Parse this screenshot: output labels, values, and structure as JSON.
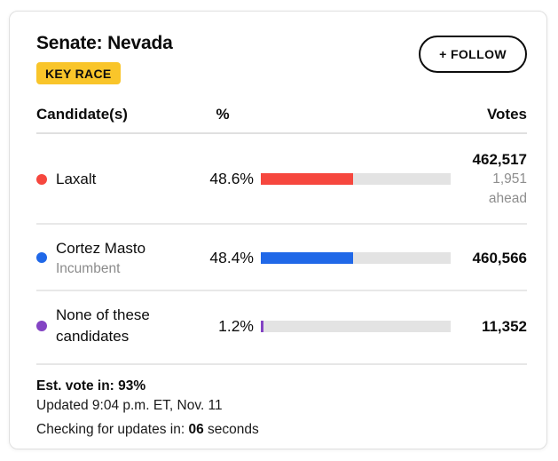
{
  "header": {
    "title": "Senate: Nevada",
    "badge": "KEY RACE",
    "follow_label": "+ FOLLOW"
  },
  "table": {
    "col_candidate": "Candidate(s)",
    "col_percent": "%",
    "col_votes": "Votes"
  },
  "candidates": [
    {
      "name": "Laxalt",
      "percent": "48.6%",
      "percent_value": 48.6,
      "votes": "462,517",
      "margin": "1,951",
      "margin_label": "ahead",
      "color": "#f6473e"
    },
    {
      "name": "Cortez Masto",
      "subtitle": "Incumbent",
      "percent": "48.4%",
      "percent_value": 48.4,
      "votes": "460,566",
      "color": "#2068e8"
    },
    {
      "name": "None of these candidates",
      "percent": "1.2%",
      "percent_value": 1.2,
      "votes": "11,352",
      "color": "#8444c4"
    }
  ],
  "footer": {
    "est_vote_label": "Est. vote in:",
    "est_vote_value": "93%",
    "updated": "Updated 9:04 p.m. ET, Nov. 11",
    "checking_prefix": "Checking for updates in:",
    "checking_value": "06",
    "checking_suffix": "seconds"
  },
  "colors": {
    "badge_yellow": "#f9c52a",
    "bar_track_gray": "#e3e3e3",
    "laxalt_red": "#f6473e",
    "cortez_blue": "#2068e8",
    "none_purple": "#8444c4"
  },
  "chart_data": {
    "type": "bar",
    "title": "Senate: Nevada",
    "categories": [
      "Laxalt",
      "Cortez Masto",
      "None of these candidates"
    ],
    "series": [
      {
        "name": "Percent of vote",
        "values": [
          48.6,
          48.4,
          1.2
        ]
      },
      {
        "name": "Votes",
        "values": [
          462517,
          460566,
          11352
        ]
      }
    ],
    "xlim": [
      0,
      100
    ],
    "annotations": [
      "Laxalt 1,951 ahead",
      "Est. vote in: 93%"
    ]
  }
}
